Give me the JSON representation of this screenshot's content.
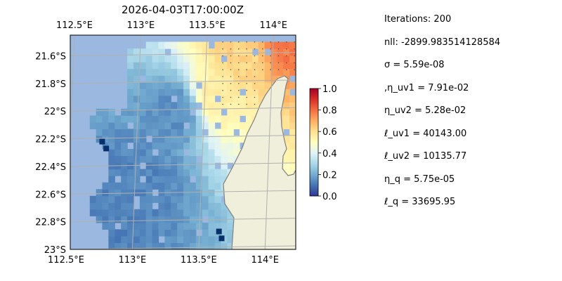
{
  "chart_data": {
    "type": "heatmap",
    "title": "2026-04-03T17:00:00Z",
    "x_ticks": [
      "112.5°E",
      "113°E",
      "113.5°E",
      "114°E"
    ],
    "x_tick_values": [
      112.5,
      113.0,
      113.5,
      114.0
    ],
    "y_ticks": [
      "21.6°S",
      "21.8°S",
      "22°S",
      "22.2°S",
      "22.4°S",
      "22.6°S",
      "22.8°S",
      "23°S"
    ],
    "y_tick_values": [
      -21.6,
      -21.8,
      -22.0,
      -22.2,
      -22.4,
      -22.6,
      -22.8,
      -23.0
    ],
    "xlim": [
      112.5,
      114.2
    ],
    "ylim": [
      -23.0,
      -21.45
    ],
    "grid": true,
    "colorbar": {
      "colormap": "RdYlBu_r",
      "range": [
        0.0,
        1.0
      ],
      "ticks": [
        "0.0",
        "0.2",
        "0.4",
        "0.6",
        "0.8",
        "1.0"
      ],
      "tick_values": [
        0.0,
        0.2,
        0.4,
        0.6,
        0.8,
        1.0
      ]
    },
    "field_description_points": [
      {
        "lon": 112.6,
        "lat": -22.8,
        "value": 0.12
      },
      {
        "lon": 113.0,
        "lat": -22.5,
        "value": 0.13
      },
      {
        "lon": 113.3,
        "lat": -22.0,
        "value": 0.15
      },
      {
        "lon": 113.6,
        "lat": -21.9,
        "value": 0.55
      },
      {
        "lon": 113.8,
        "lat": -21.6,
        "value": 0.62
      },
      {
        "lon": 114.1,
        "lat": -21.5,
        "value": 0.78
      }
    ],
    "colors": {
      "ocean": "#9ab8e0",
      "land": "#efefdc",
      "coast": "#808080",
      "grid": "#b0b0b0"
    }
  },
  "params": [
    {
      "text": "Iterations: 200"
    },
    {
      "text": "nll: -2899.983514128584"
    },
    {
      "text": "σ = 5.59e-08"
    },
    {
      "text": ",η_uv1 = 7.91e-02"
    },
    {
      "text": "η_uv2 = 5.28e-02"
    },
    {
      "text": "ℓ_uv1 = 40143.00"
    },
    {
      "text": "ℓ_uv2 = 10135.77"
    },
    {
      "text": "η_q = 5.75e-05"
    },
    {
      "text": "ℓ_q = 33695.95"
    }
  ]
}
